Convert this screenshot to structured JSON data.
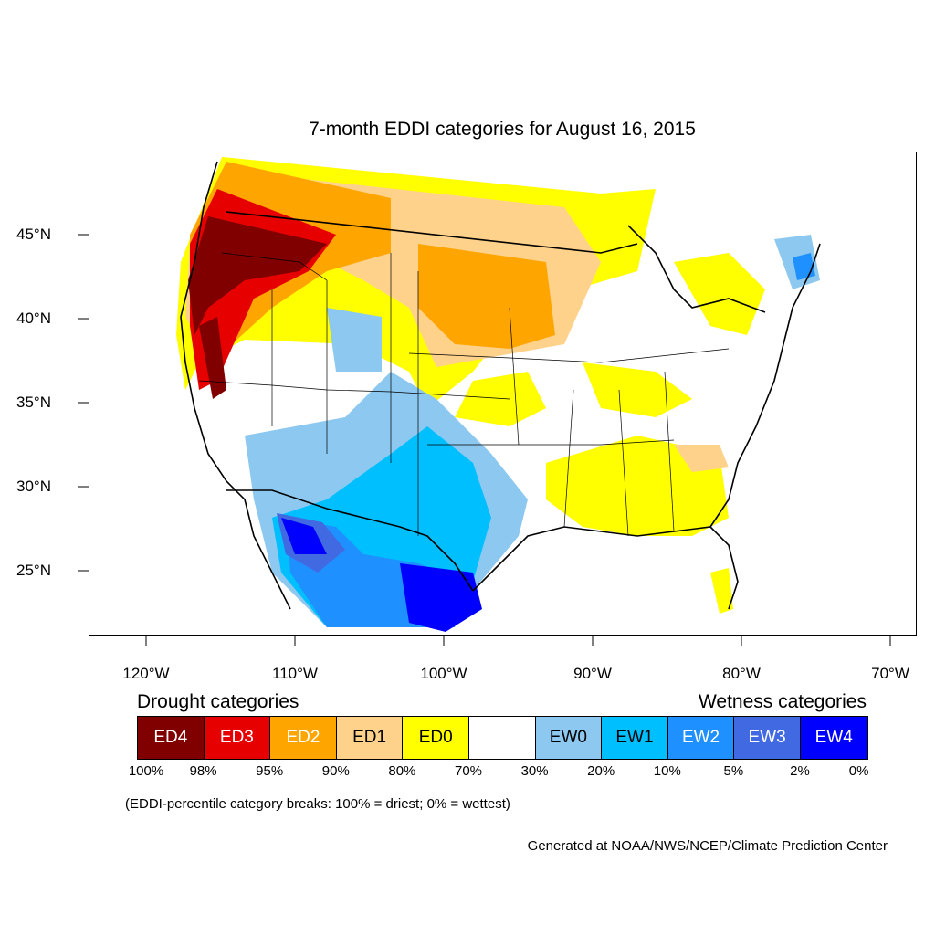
{
  "title": "7-month EDDI categories for August 16, 2015",
  "lat_labels": [
    "45°N",
    "40°N",
    "35°N",
    "30°N",
    "25°N"
  ],
  "lon_labels": [
    "120°W",
    "110°W",
    "100°W",
    "90°W",
    "80°W",
    "70°W"
  ],
  "legend": {
    "drought_heading": "Drought categories",
    "wetness_heading": "Wetness categories",
    "categories": [
      {
        "label": "ED4",
        "color": "#800000",
        "text_color": "#ffffff"
      },
      {
        "label": "ED3",
        "color": "#e60000",
        "text_color": "#ffffff"
      },
      {
        "label": "ED2",
        "color": "#ffa500",
        "text_color": "#ffffff"
      },
      {
        "label": "ED1",
        "color": "#ffd28c",
        "text_color": "#000000"
      },
      {
        "label": "ED0",
        "color": "#ffff00",
        "text_color": "#000000"
      },
      {
        "label": "",
        "color": "#ffffff",
        "text_color": "#000000"
      },
      {
        "label": "EW0",
        "color": "#8cc8ef",
        "text_color": "#000000"
      },
      {
        "label": "EW1",
        "color": "#00bfff",
        "text_color": "#000000"
      },
      {
        "label": "EW2",
        "color": "#1e90ff",
        "text_color": "#ffffff"
      },
      {
        "label": "EW3",
        "color": "#4169e1",
        "text_color": "#ffffff"
      },
      {
        "label": "EW4",
        "color": "#0000ff",
        "text_color": "#ffffff"
      }
    ],
    "breaks": [
      "100%",
      "98%",
      "95%",
      "90%",
      "80%",
      "70%",
      "30%",
      "20%",
      "10%",
      "5%",
      "2%",
      "0%"
    ]
  },
  "note": "(EDDI-percentile category breaks: 100% = driest; 0% = wettest)",
  "credit": "Generated at NOAA/NWS/NCEP/Climate Prediction Center"
}
